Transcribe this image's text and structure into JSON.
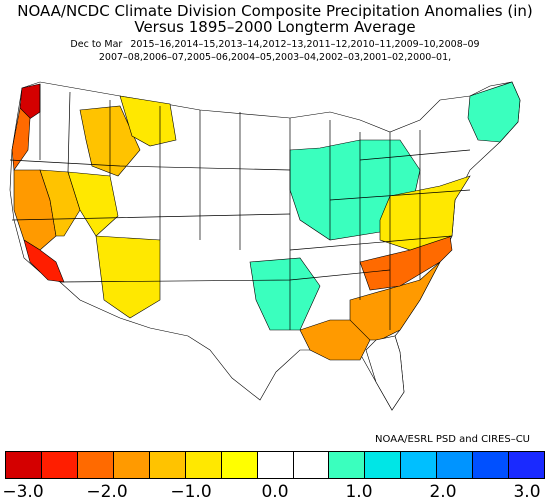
{
  "title_line1": "NOAA/NCDC Climate Division Composite Precipitation Anomalies (in)",
  "title_line2": "Versus 1895–2000 Longterm Average",
  "period_label": "Dec to Mar",
  "seasons_line1": "2015–16,2014–15,2013–14,2012–13,2011–12,2010–11,2009–10,2008–09",
  "seasons_line2": "2007–08,2006–07,2005–06,2004–05,2003–04,2002–03,2001–02,2000–01,",
  "credit": "NOAA/ESRL PSD and CIRES–CU",
  "legend": {
    "colors": [
      "#d40000",
      "#ff1e00",
      "#ff6a00",
      "#ff9a00",
      "#ffc300",
      "#ffe800",
      "#ffff00",
      "#ffffff",
      "#ffffff",
      "#3affbe",
      "#00e6e6",
      "#00bfff",
      "#0094ff",
      "#0050ff",
      "#1a2aff"
    ],
    "ticks": [
      "−3.0",
      "−2.0",
      "−1.0",
      "0.0",
      "1.0",
      "2.0",
      "3.0"
    ]
  },
  "map": {
    "regions": [
      {
        "name": "wa-coast",
        "color": "#d40000"
      },
      {
        "name": "oregon-coast",
        "color": "#ff6a00"
      },
      {
        "name": "california-coast",
        "color": "#ff9a00"
      },
      {
        "name": "socal",
        "color": "#ff1e00"
      },
      {
        "name": "central-ca",
        "color": "#ffc300"
      },
      {
        "name": "nevada-west",
        "color": "#ffe800"
      },
      {
        "name": "idaho",
        "color": "#ffc300"
      },
      {
        "name": "montana-west",
        "color": "#ffe800"
      },
      {
        "name": "arizona",
        "color": "#ffe800"
      },
      {
        "name": "midwest",
        "color": "#3affbe"
      },
      {
        "name": "texas-east",
        "color": "#3affbe"
      },
      {
        "name": "new-england",
        "color": "#3affbe"
      },
      {
        "name": "southeast",
        "color": "#ff9a00"
      },
      {
        "name": "tennessee-carolinas",
        "color": "#ff6a00"
      },
      {
        "name": "gulf-coast",
        "color": "#ff9a00"
      },
      {
        "name": "appalachia",
        "color": "#ffe800"
      }
    ]
  }
}
